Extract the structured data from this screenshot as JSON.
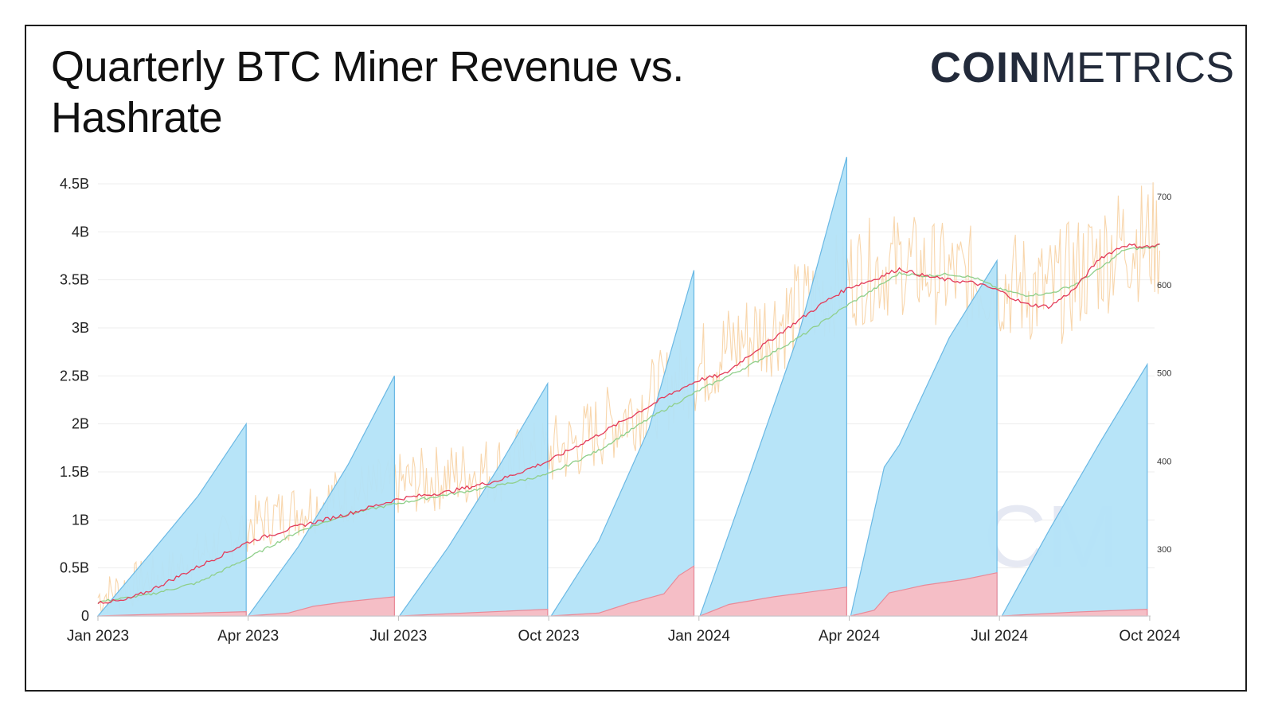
{
  "header": {
    "title_line1": "Quarterly BTC Miner Revenue vs.",
    "title_line2": "Hashrate",
    "logo_bold": "COIN",
    "logo_light": "METRICS",
    "watermark": "CM"
  },
  "colors": {
    "revenue_fill": "#b3e3f8",
    "revenue_stroke": "#6ab8e4",
    "fees_fill": "#f8bcc3",
    "hashrate_daily": "#f7cf9d",
    "hashrate_ma_red": "#e33b5a",
    "hashrate_ma_green": "#8fcf8a",
    "grid": "#eeeeee"
  },
  "chart_data": {
    "type": "area",
    "x_ticks": [
      "Jan 2023",
      "Apr 2023",
      "Jul 2023",
      "Oct 2023",
      "Jan 2024",
      "Apr 2024",
      "Jul 2024",
      "Oct 2024"
    ],
    "y_left_ticks": [
      "0",
      "0.5B",
      "1B",
      "1.5B",
      "2B",
      "2.5B",
      "3B",
      "3.5B",
      "4B",
      "4.5B"
    ],
    "y_left_lim": [
      0,
      4.5
    ],
    "y_right_ticks": [
      "300",
      "400",
      "500",
      "600",
      "700"
    ],
    "y_right_lim": [
      225,
      715
    ],
    "grid": true,
    "series": [
      {
        "kind": "cumulative_quarterly_revenue",
        "axis": "left",
        "quarters": [
          {
            "start": 0.0,
            "end": 2.96,
            "points": [
              [
                0.0,
                0.0
              ],
              [
                1.0,
                0.62
              ],
              [
                2.0,
                1.25
              ],
              [
                2.96,
                2.0
              ]
            ]
          },
          {
            "start": 3.0,
            "end": 5.92,
            "points": [
              [
                3.0,
                0.0
              ],
              [
                4.0,
                0.72
              ],
              [
                5.0,
                1.58
              ],
              [
                5.92,
                2.5
              ]
            ]
          },
          {
            "start": 6.02,
            "end": 8.98,
            "points": [
              [
                6.02,
                0.0
              ],
              [
                7.0,
                0.72
              ],
              [
                8.0,
                1.55
              ],
              [
                8.98,
                2.42
              ]
            ]
          },
          {
            "start": 9.05,
            "end": 11.9,
            "points": [
              [
                9.05,
                0.0
              ],
              [
                10.0,
                0.78
              ],
              [
                11.0,
                1.95
              ],
              [
                11.9,
                3.6
              ]
            ]
          },
          {
            "start": 12.02,
            "end": 14.95,
            "points": [
              [
                12.02,
                0.0
              ],
              [
                13.0,
                1.45
              ],
              [
                14.0,
                2.95
              ],
              [
                14.95,
                4.78
              ]
            ]
          },
          {
            "start": 15.03,
            "end": 17.95,
            "points": [
              [
                15.03,
                0.0
              ],
              [
                15.7,
                1.55
              ],
              [
                16.0,
                1.78
              ],
              [
                17.0,
                2.9
              ],
              [
                17.95,
                3.7
              ]
            ]
          },
          {
            "start": 18.05,
            "end": 20.95,
            "points": [
              [
                18.05,
                0.0
              ],
              [
                19.0,
                0.9
              ],
              [
                20.0,
                1.8
              ],
              [
                20.95,
                2.62
              ]
            ]
          }
        ]
      },
      {
        "kind": "cumulative_quarterly_fees",
        "axis": "left",
        "quarters": [
          {
            "start": 0.0,
            "end": 2.96,
            "points": [
              [
                0.0,
                0.0
              ],
              [
                2.96,
                0.045
              ]
            ]
          },
          {
            "start": 3.0,
            "end": 5.92,
            "points": [
              [
                3.0,
                0.0
              ],
              [
                3.8,
                0.03
              ],
              [
                4.3,
                0.1
              ],
              [
                5.0,
                0.15
              ],
              [
                5.92,
                0.2
              ]
            ]
          },
          {
            "start": 6.02,
            "end": 8.98,
            "points": [
              [
                6.02,
                0.0
              ],
              [
                8.98,
                0.07
              ]
            ]
          },
          {
            "start": 9.05,
            "end": 11.9,
            "points": [
              [
                9.05,
                0.0
              ],
              [
                10.0,
                0.03
              ],
              [
                10.6,
                0.13
              ],
              [
                11.3,
                0.23
              ],
              [
                11.6,
                0.42
              ],
              [
                11.9,
                0.52
              ]
            ]
          },
          {
            "start": 12.02,
            "end": 14.95,
            "points": [
              [
                12.02,
                0.0
              ],
              [
                12.6,
                0.12
              ],
              [
                13.5,
                0.2
              ],
              [
                14.95,
                0.3
              ]
            ]
          },
          {
            "start": 15.03,
            "end": 17.95,
            "points": [
              [
                15.03,
                0.0
              ],
              [
                15.5,
                0.06
              ],
              [
                15.8,
                0.24
              ],
              [
                16.5,
                0.32
              ],
              [
                17.3,
                0.38
              ],
              [
                17.95,
                0.45
              ]
            ]
          },
          {
            "start": 18.05,
            "end": 20.95,
            "points": [
              [
                18.05,
                0.0
              ],
              [
                19.5,
                0.04
              ],
              [
                20.95,
                0.07
              ]
            ]
          }
        ]
      },
      {
        "kind": "hashrate_daily",
        "axis": "right",
        "x_start": 0.0,
        "x_end": 21.2,
        "trend": [
          [
            0,
            245
          ],
          [
            1.5,
            275
          ],
          [
            3,
            328
          ],
          [
            5,
            362
          ],
          [
            6.5,
            378
          ],
          [
            8,
            392
          ],
          [
            9.5,
            418
          ],
          [
            11,
            468
          ],
          [
            12.5,
            525
          ],
          [
            14,
            570
          ],
          [
            15,
            610
          ],
          [
            16,
            625
          ],
          [
            17,
            610
          ],
          [
            18,
            602
          ],
          [
            19,
            590
          ],
          [
            19.5,
            610
          ],
          [
            20.5,
            650
          ],
          [
            21.2,
            650
          ]
        ],
        "noise_amplitude": [
          [
            0,
            25
          ],
          [
            5,
            35
          ],
          [
            10,
            45
          ],
          [
            14,
            60
          ],
          [
            17,
            60
          ],
          [
            20,
            70
          ],
          [
            21.2,
            70
          ]
        ]
      },
      {
        "kind": "hashrate_ma_red",
        "axis": "right",
        "points": [
          [
            0,
            240
          ],
          [
            0.5,
            241
          ],
          [
            1,
            252
          ],
          [
            2,
            280
          ],
          [
            3,
            308
          ],
          [
            4,
            326
          ],
          [
            5,
            340
          ],
          [
            6,
            357
          ],
          [
            7,
            365
          ],
          [
            8,
            378
          ],
          [
            9,
            400
          ],
          [
            10,
            430
          ],
          [
            11,
            462
          ],
          [
            11.5,
            478
          ],
          [
            12,
            492
          ],
          [
            12.5,
            498
          ],
          [
            13,
            520
          ],
          [
            14,
            560
          ],
          [
            14.5,
            580
          ],
          [
            15,
            597
          ],
          [
            15.5,
            606
          ],
          [
            16,
            618
          ],
          [
            16.5,
            610
          ],
          [
            17,
            605
          ],
          [
            17.5,
            602
          ],
          [
            18,
            593
          ],
          [
            18.5,
            578
          ],
          [
            19,
            575
          ],
          [
            19.5,
            595
          ],
          [
            20,
            630
          ],
          [
            20.5,
            645
          ],
          [
            21,
            643
          ],
          [
            21.2,
            645
          ]
        ]
      },
      {
        "kind": "hashrate_ma_green",
        "axis": "right",
        "points": [
          [
            0,
            240
          ],
          [
            1,
            248
          ],
          [
            2,
            262
          ],
          [
            3,
            290
          ],
          [
            4,
            320
          ],
          [
            5,
            340
          ],
          [
            6,
            352
          ],
          [
            7,
            362
          ],
          [
            8,
            372
          ],
          [
            9,
            385
          ],
          [
            10,
            412
          ],
          [
            11,
            448
          ],
          [
            12,
            480
          ],
          [
            13,
            508
          ],
          [
            14,
            540
          ],
          [
            15,
            578
          ],
          [
            15.5,
            595
          ],
          [
            16,
            613
          ],
          [
            16.5,
            610
          ],
          [
            17,
            612
          ],
          [
            17.5,
            608
          ],
          [
            18,
            595
          ],
          [
            18.5,
            588
          ],
          [
            19,
            590
          ],
          [
            19.5,
            600
          ],
          [
            20,
            618
          ],
          [
            20.5,
            640
          ],
          [
            21,
            642
          ],
          [
            21.2,
            645
          ]
        ]
      }
    ]
  }
}
